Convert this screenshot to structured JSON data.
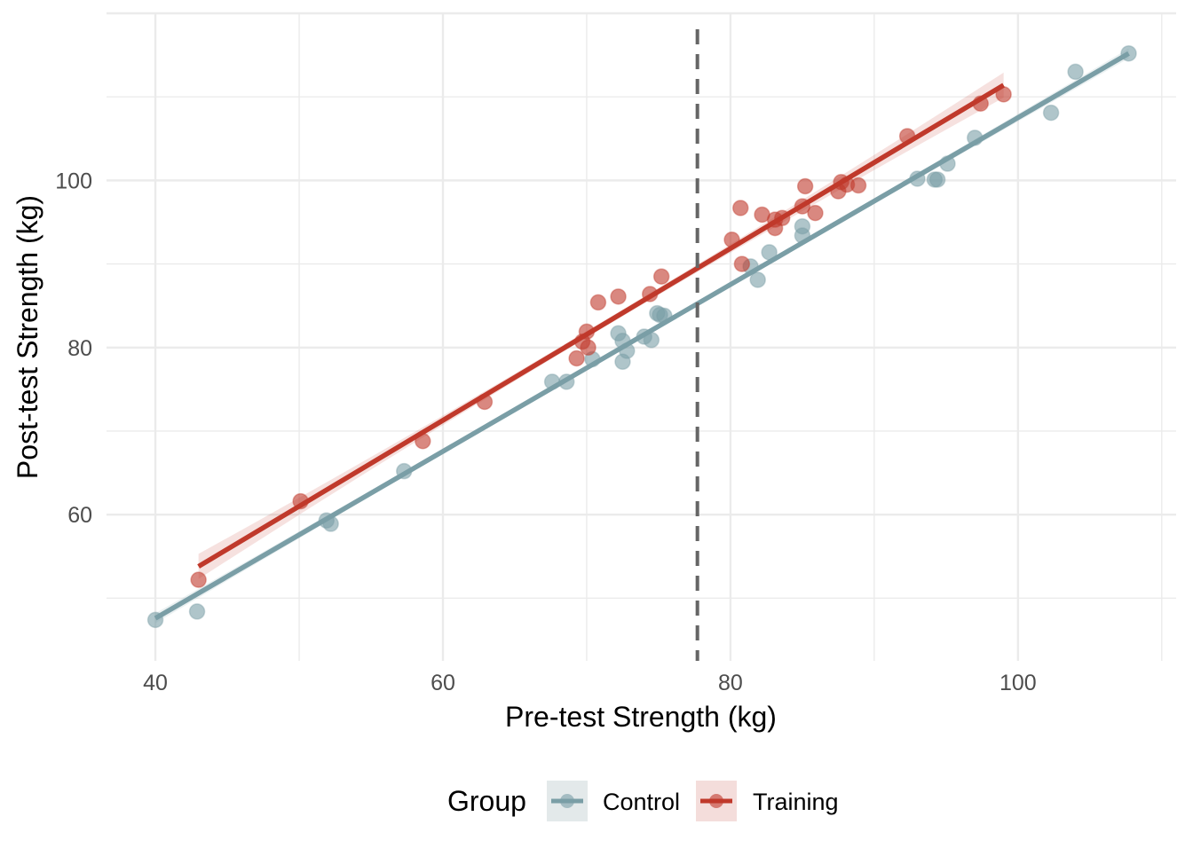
{
  "chart_data": {
    "type": "scatter",
    "title": "",
    "xlabel": "Pre-test Strength (kg)",
    "ylabel": "Post-test Strength (kg)",
    "xlim": [
      36.6,
      111
    ],
    "ylim": [
      42.5,
      120
    ],
    "xticks": [
      40,
      60,
      80,
      100
    ],
    "yticks": [
      60,
      80,
      100
    ],
    "x_tick_labels": [
      "40",
      "60",
      "80",
      "100"
    ],
    "y_tick_labels": [
      "60",
      "80",
      "100"
    ],
    "grid": true,
    "reference_line": {
      "type": "vertical",
      "x": 77.7,
      "style": "dashed",
      "color": "#666666"
    },
    "legend": {
      "title": "Group",
      "placement": "bottom"
    },
    "series": [
      {
        "name": "Control",
        "color": "#7A9EA6",
        "points": [
          [
            40.0,
            47.4
          ],
          [
            42.9,
            48.4
          ],
          [
            51.9,
            59.3
          ],
          [
            52.2,
            58.9
          ],
          [
            57.3,
            65.2
          ],
          [
            67.6,
            75.9
          ],
          [
            68.6,
            75.9
          ],
          [
            70.4,
            78.6
          ],
          [
            72.2,
            81.7
          ],
          [
            72.5,
            80.8
          ],
          [
            72.5,
            78.3
          ],
          [
            72.8,
            79.6
          ],
          [
            74.0,
            81.3
          ],
          [
            74.5,
            80.9
          ],
          [
            74.9,
            84.1
          ],
          [
            75.1,
            83.9
          ],
          [
            75.4,
            83.8
          ],
          [
            81.4,
            89.7
          ],
          [
            81.9,
            88.1
          ],
          [
            82.7,
            91.4
          ],
          [
            85.0,
            94.5
          ],
          [
            85.0,
            93.4
          ],
          [
            93.0,
            100.2
          ],
          [
            94.2,
            100.1
          ],
          [
            94.4,
            100.1
          ],
          [
            95.1,
            102.0
          ],
          [
            97.0,
            105.1
          ],
          [
            102.3,
            108.1
          ],
          [
            104.0,
            113.0
          ],
          [
            107.7,
            115.2
          ]
        ],
        "fit": {
          "x": [
            40.0,
            107.7
          ],
          "y": [
            47.6,
            115.2
          ],
          "se_ends": 0.6,
          "se_mid": 0.25
        }
      },
      {
        "name": "Training",
        "color": "#C0392B",
        "points": [
          [
            43.0,
            52.2
          ],
          [
            50.1,
            61.6
          ],
          [
            58.6,
            68.8
          ],
          [
            62.9,
            73.5
          ],
          [
            69.3,
            78.7
          ],
          [
            69.7,
            80.7
          ],
          [
            70.0,
            81.9
          ],
          [
            70.1,
            80.0
          ],
          [
            70.8,
            85.4
          ],
          [
            72.2,
            86.1
          ],
          [
            74.4,
            86.4
          ],
          [
            75.2,
            88.5
          ],
          [
            80.1,
            92.9
          ],
          [
            80.7,
            96.7
          ],
          [
            80.8,
            90.0
          ],
          [
            82.2,
            95.9
          ],
          [
            83.1,
            95.3
          ],
          [
            83.1,
            94.3
          ],
          [
            83.6,
            95.5
          ],
          [
            85.0,
            96.9
          ],
          [
            85.2,
            99.3
          ],
          [
            85.9,
            96.1
          ],
          [
            87.5,
            98.7
          ],
          [
            87.7,
            99.8
          ],
          [
            88.1,
            99.5
          ],
          [
            88.9,
            99.4
          ],
          [
            92.3,
            105.3
          ],
          [
            97.4,
            109.2
          ],
          [
            99.0,
            110.3
          ]
        ],
        "fit": {
          "x": [
            43.0,
            99.0
          ],
          "y": [
            53.8,
            111.4
          ],
          "se_ends": 1.5,
          "se_mid": 0.4
        }
      }
    ]
  }
}
